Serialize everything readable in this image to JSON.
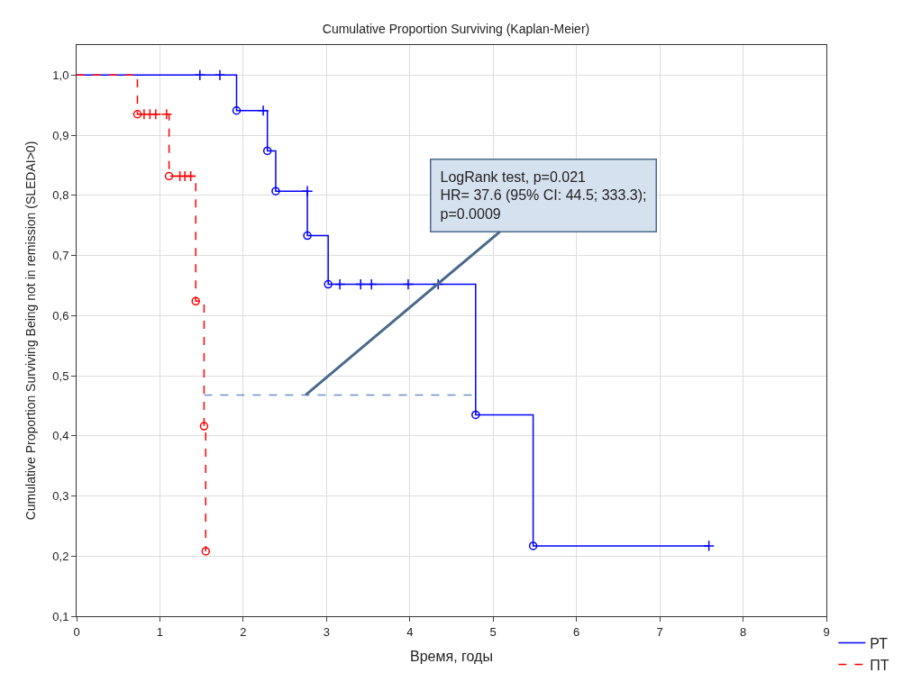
{
  "chart_data": {
    "type": "step",
    "title": "Cumulative Proportion Surviving (Kaplan-Meier)",
    "xlabel": "Время, годы",
    "ylabel": "Cumulative Proportion Surviving Being not in remission (SLEDAI>0)",
    "xlim": [
      0,
      9
    ],
    "xticks": [
      0,
      1,
      2,
      3,
      4,
      5,
      6,
      7,
      8,
      9
    ],
    "ylim": [
      0.1,
      1.05
    ],
    "yticks": [
      {
        "value": 0.1,
        "label": "0,1"
      },
      {
        "value": 0.2,
        "label": "0,2"
      },
      {
        "value": 0.3,
        "label": "0,3"
      },
      {
        "value": 0.4,
        "label": "0,4"
      },
      {
        "value": 0.5,
        "label": "0,5"
      },
      {
        "value": 0.6,
        "label": "0,6"
      },
      {
        "value": 0.7,
        "label": "0,7"
      },
      {
        "value": 0.8,
        "label": "0,8"
      },
      {
        "value": 0.9,
        "label": "0,9"
      },
      {
        "value": 1.0,
        "label": "1,0"
      }
    ],
    "grid": true,
    "legend": "bottom right",
    "series": [
      {
        "name": "РТ",
        "color": "#0000ff",
        "line_style": "solid",
        "marker": "none",
        "x": [
          0,
          1.92,
          2.29,
          2.39,
          2.77,
          3.02,
          4.79,
          5.48,
          7.59
        ],
        "values": [
          1.0,
          0.941,
          0.874,
          0.807,
          0.733,
          0.652,
          0.435,
          0.217,
          0.217
        ]
      },
      {
        "name": "ПТ",
        "color": "#ff0000",
        "line_style": "dashed",
        "marker": "none",
        "x": [
          0,
          0.73,
          1.11,
          1.43,
          1.53,
          1.55
        ],
        "values": [
          1.0,
          0.935,
          0.832,
          0.624,
          0.416,
          0.208
        ]
      },
      {
        "type": "scatter",
        "color": "#0000ff",
        "marker": "circle",
        "x": [
          1.92,
          2.29,
          2.39,
          2.77,
          3.02,
          4.79,
          5.48
        ],
        "values": [
          0.941,
          0.874,
          0.807,
          0.733,
          0.652,
          0.435,
          0.217
        ]
      },
      {
        "type": "scatter",
        "color": "#0000ff",
        "marker": "cross",
        "x": [
          1.48,
          1.72,
          2.24,
          2.77,
          3.16,
          3.41,
          3.54,
          3.98,
          4.34,
          7.59
        ],
        "values": [
          1.0,
          1.0,
          0.941,
          0.807,
          0.652,
          0.652,
          0.652,
          0.652,
          0.652,
          0.217
        ]
      },
      {
        "type": "scatter",
        "color": "#ff0000",
        "marker": "circle",
        "x": [
          0.73,
          1.11,
          1.43,
          1.53,
          1.55
        ],
        "values": [
          0.935,
          0.832,
          0.624,
          0.416,
          0.208
        ]
      },
      {
        "type": "scatter",
        "color": "#ff0000",
        "marker": "cross",
        "x": [
          0.81,
          0.88,
          0.95,
          1.08,
          1.24,
          1.3,
          1.37
        ],
        "values": [
          0.935,
          0.935,
          0.935,
          0.935,
          0.832,
          0.832,
          0.832
        ]
      },
      {
        "type": "line",
        "color": "#6f8fc8",
        "line_style": "dashed",
        "marker": "none",
        "x": [
          1.53,
          4.79
        ],
        "values": [
          0.468,
          0.468
        ]
      }
    ],
    "annotations": [
      {
        "text": "LogRank test, p=0.021\nHR= 37.6 (95% CI: 44.5; 333.3);\np=0.0009",
        "x": 2.75,
        "y": 0.468
      }
    ]
  }
}
